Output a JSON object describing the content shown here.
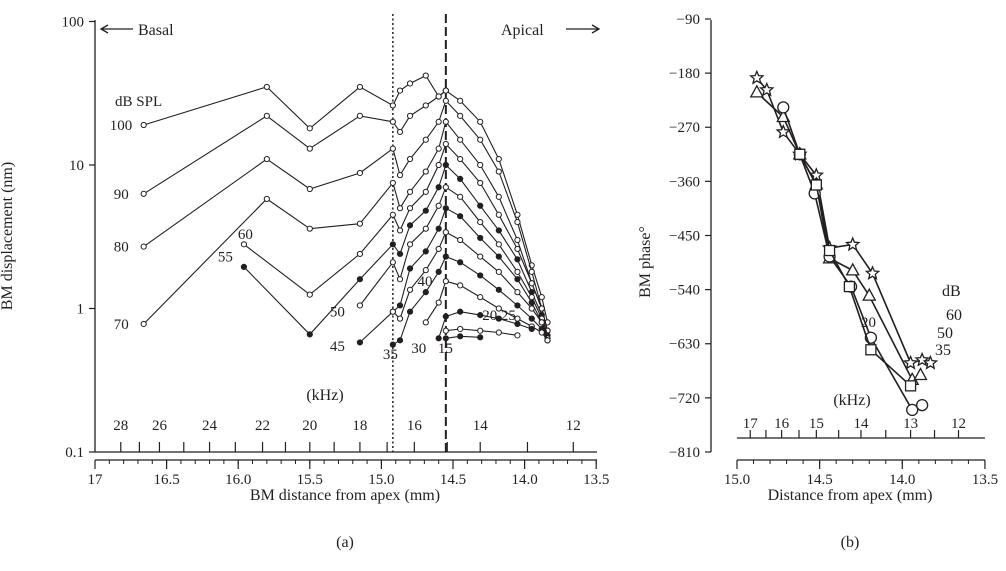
{
  "chart_data": [
    {
      "panel": "(a)",
      "type": "line",
      "ylabel": "BM displacement (nm)",
      "xlabel": "BM distance from apex (mm)",
      "yscale": "log",
      "ylim": [
        0.1,
        100
      ],
      "yticks": [
        0.1,
        1,
        10,
        100
      ],
      "ytick_labels": [
        "0.1",
        "1",
        "10",
        "100"
      ],
      "xlim": [
        17,
        13.5
      ],
      "xticks": [
        17,
        16.5,
        16,
        15.5,
        15,
        14.5,
        14,
        13.5
      ],
      "xtick_labels": [
        "17",
        "16.5",
        "16.0",
        "15.5",
        "15.0",
        "14.5",
        "14.0",
        "13.5"
      ],
      "freq_axis": {
        "label": "(kHz)",
        "labels": [
          "28",
          "26",
          "24",
          "22",
          "20",
          "18",
          "16",
          "14",
          "12"
        ],
        "label_positions_mm": [
          16.82,
          16.55,
          16.2,
          15.83,
          15.5,
          15.15,
          14.77,
          14.31,
          13.66
        ],
        "minor_ticks_mm": [
          16.82,
          16.69,
          16.55,
          16.38,
          16.2,
          16.02,
          15.83,
          15.67,
          15.5,
          15.33,
          15.15,
          14.96,
          14.77,
          14.54,
          14.31,
          13.98,
          13.66
        ]
      },
      "annotations": {
        "basal": "Basal",
        "apical": "Apical",
        "spl_header": "dB SPL",
        "dotted_line_mm": 14.92,
        "dashed_line_mm": 14.55
      },
      "level_labels": [
        {
          "text": "100",
          "x": 16.66,
          "y": 19
        },
        {
          "text": "90",
          "x": 16.66,
          "y": 6.3
        },
        {
          "text": "80",
          "x": 16.66,
          "y": 2.7
        },
        {
          "text": "70",
          "x": 16.66,
          "y": 0.78
        },
        {
          "text": "60",
          "x": 15.96,
          "y": 3.3
        },
        {
          "text": "55",
          "x": 15.96,
          "y": 2.3
        },
        {
          "text": "50",
          "x": 15.15,
          "y": 0.95
        },
        {
          "text": "45",
          "x": 15.15,
          "y": 0.55
        },
        {
          "text": "40",
          "x": 14.72,
          "y": 1.55
        },
        {
          "text": "35",
          "x": 14.92,
          "y": 0.48
        },
        {
          "text": "30",
          "x": 14.75,
          "y": 0.53
        },
        {
          "text": "15",
          "x": 14.55,
          "y": 0.53
        },
        {
          "text": "20",
          "x": 14.31,
          "y": 0.9
        },
        {
          "text": "25",
          "x": 14.18,
          "y": 0.9
        }
      ],
      "series": [
        {
          "name": "100",
          "marker": "open",
          "x": [
            16.66,
            15.8,
            15.5,
            15.15,
            14.92,
            14.87,
            14.8,
            14.69,
            14.6,
            14.55
          ],
          "y": [
            19,
            35,
            18,
            35,
            26,
            33,
            37,
            42,
            30,
            33
          ]
        },
        {
          "name": "90",
          "marker": "open",
          "x": [
            16.66,
            15.8,
            15.5,
            15.15,
            14.92,
            14.87,
            14.8,
            14.69,
            14.6,
            14.55,
            14.45,
            14.31,
            14.18,
            14.05,
            13.95,
            13.88,
            13.84
          ],
          "y": [
            6.3,
            22,
            13,
            22,
            20,
            17,
            22,
            26,
            30,
            33,
            28,
            20,
            11,
            4.5,
            2.0,
            1.2,
            0.8
          ]
        },
        {
          "name": "80",
          "marker": "open",
          "x": [
            16.66,
            15.8,
            15.5,
            15.15,
            14.92,
            14.87,
            14.8,
            14.69,
            14.6,
            14.55,
            14.45,
            14.31,
            14.18,
            14.05,
            13.95,
            13.88,
            13.84
          ],
          "y": [
            2.7,
            11,
            6.8,
            8.8,
            13,
            8.5,
            11,
            15,
            20,
            28,
            22,
            15,
            9.0,
            4.0,
            1.8,
            1.0,
            0.7
          ]
        },
        {
          "name": "70",
          "marker": "open",
          "x": [
            16.66,
            15.8,
            15.5,
            15.15,
            14.92,
            14.87,
            14.8,
            14.69,
            14.6,
            14.55,
            14.45,
            14.31,
            14.18,
            14.05,
            13.95,
            13.88,
            13.84
          ],
          "y": [
            0.78,
            5.8,
            3.6,
            3.9,
            7.5,
            5.0,
            6.5,
            9.0,
            13,
            20,
            15,
            10,
            6.0,
            3.0,
            1.5,
            1.0,
            0.7
          ]
        },
        {
          "name": "60",
          "marker": "open",
          "x": [
            15.96,
            15.5,
            15.15,
            14.92,
            14.87,
            14.8,
            14.69,
            14.6,
            14.55,
            14.45,
            14.31,
            14.18,
            14.05,
            13.95,
            13.88,
            13.84
          ],
          "y": [
            2.8,
            1.25,
            2.4,
            4.5,
            3.5,
            5.0,
            6.5,
            10,
            14,
            11,
            7.5,
            4.5,
            2.6,
            1.5,
            1.0,
            0.7
          ]
        },
        {
          "name": "55",
          "marker": "filled",
          "x": [
            15.96,
            15.5,
            15.15,
            14.92,
            14.87,
            14.8,
            14.69,
            14.6,
            14.55,
            14.45,
            14.31,
            14.18,
            14.05,
            13.95,
            13.88,
            13.84
          ],
          "y": [
            1.95,
            0.66,
            1.6,
            2.8,
            2.4,
            3.8,
            4.8,
            7.0,
            10,
            8.0,
            5.2,
            3.5,
            2.2,
            1.3,
            0.9,
            0.65
          ]
        },
        {
          "name": "50",
          "marker": "open",
          "x": [
            15.15,
            14.92,
            14.87,
            14.8,
            14.69,
            14.6,
            14.55,
            14.45,
            14.31,
            14.18,
            14.05,
            13.95,
            13.88,
            13.84
          ],
          "y": [
            1.05,
            2.1,
            1.6,
            2.8,
            3.6,
            5.2,
            7.0,
            6.0,
            4.0,
            2.8,
            1.8,
            1.2,
            0.85,
            0.62
          ]
        },
        {
          "name": "45",
          "marker": "filled",
          "x": [
            15.15,
            14.92,
            14.87,
            14.8,
            14.69,
            14.6,
            14.55,
            14.45,
            14.31,
            14.18,
            14.05,
            13.95,
            13.88,
            13.84
          ],
          "y": [
            0.58,
            0.95,
            1.05,
            1.9,
            2.5,
            3.6,
            5.0,
            4.4,
            3.1,
            2.3,
            1.6,
            1.1,
            0.8,
            0.6
          ]
        },
        {
          "name": "40",
          "marker": "open",
          "x": [
            14.92,
            14.87,
            14.8,
            14.69,
            14.6,
            14.55,
            14.45,
            14.31,
            14.18,
            14.05,
            13.95,
            13.88,
            13.84
          ],
          "y": [
            0.95,
            0.85,
            1.35,
            1.85,
            2.6,
            3.4,
            3.0,
            2.3,
            1.8,
            1.3,
            1.0,
            0.8,
            0.6
          ]
        },
        {
          "name": "35",
          "marker": "filled",
          "x": [
            14.92,
            14.87,
            14.8,
            14.69,
            14.6,
            14.55,
            14.45,
            14.31,
            14.18,
            14.05,
            13.95,
            13.88,
            13.84
          ],
          "y": [
            0.56,
            0.6,
            0.95,
            1.3,
            1.8,
            2.3,
            2.1,
            1.7,
            1.35,
            1.05,
            0.85,
            0.72,
            0.6
          ]
        },
        {
          "name": "30",
          "marker": "open",
          "x": [
            14.69,
            14.6,
            14.55,
            14.45,
            14.31,
            14.18,
            14.05,
            13.95,
            13.88,
            13.84
          ],
          "y": [
            0.8,
            1.1,
            1.55,
            1.45,
            1.2,
            1.0,
            0.85,
            0.75,
            0.68,
            0.6
          ]
        },
        {
          "name": "25",
          "marker": "filled",
          "x": [
            14.6,
            14.55,
            14.45,
            14.31,
            14.18,
            14.05,
            13.95
          ],
          "y": [
            0.62,
            0.88,
            0.95,
            0.9,
            0.85,
            0.78,
            0.72
          ]
        },
        {
          "name": "20",
          "marker": "open",
          "x": [
            14.55,
            14.45,
            14.31,
            14.18,
            14.05
          ],
          "y": [
            0.7,
            0.72,
            0.7,
            0.68,
            0.65
          ]
        },
        {
          "name": "15",
          "marker": "filled",
          "x": [
            14.55,
            14.45,
            14.31
          ],
          "y": [
            0.62,
            0.64,
            0.63
          ]
        }
      ]
    },
    {
      "panel": "(b)",
      "type": "line",
      "ylabel": "BM phase°",
      "xlabel": "Distance from apex (mm)",
      "ylim": [
        -810,
        -90
      ],
      "yticks": [
        -90,
        -180,
        -270,
        -360,
        -450,
        -540,
        -630,
        -720,
        -810
      ],
      "ytick_labels": [
        "−90",
        "−180",
        "−270",
        "−360",
        "−450",
        "−540",
        "−630",
        "−720",
        "−810"
      ],
      "xlim": [
        15.0,
        13.5
      ],
      "xticks": [
        15.0,
        14.5,
        14.0,
        13.5
      ],
      "xtick_labels": [
        "15.0",
        "14.5",
        "14.0",
        "13.5"
      ],
      "freq_axis": {
        "label": "(kHz)",
        "labels": [
          "17",
          "16",
          "15",
          "14",
          "13",
          "12"
        ],
        "label_positions_mm": [
          14.92,
          14.73,
          14.52,
          14.25,
          13.95,
          13.66
        ],
        "minor_ticks_mm": [
          14.92,
          14.825,
          14.73,
          14.625,
          14.52,
          14.385,
          14.25,
          14.1,
          13.95,
          13.805,
          13.66
        ]
      },
      "annotations": {
        "db_header": "dB",
        "level_labels": [
          "60",
          "50",
          "35",
          "20"
        ]
      },
      "series": [
        {
          "name": "60",
          "marker": "star",
          "x": [
            14.88,
            14.82,
            14.72,
            14.62,
            14.52,
            14.44,
            14.3,
            14.18,
            13.95,
            13.88,
            13.83
          ],
          "y": [
            -188,
            -208,
            -278,
            -315,
            -350,
            -471,
            -465,
            -513,
            -662,
            -657,
            -662
          ]
        },
        {
          "name": "50",
          "marker": "triangle",
          "x": [
            14.88,
            14.72,
            14.62,
            14.52,
            14.44,
            14.3,
            14.2,
            13.94,
            13.89
          ],
          "y": [
            -212,
            -253,
            -315,
            -365,
            -488,
            -508,
            -550,
            -690,
            -682
          ]
        },
        {
          "name": "35",
          "marker": "circle",
          "x": [
            14.72,
            14.62,
            14.53,
            14.44,
            14.31,
            14.19,
            13.94,
            13.88
          ],
          "y": [
            -237,
            -315,
            -380,
            -485,
            -535,
            -620,
            -740,
            -732
          ]
        },
        {
          "name": "20",
          "marker": "square",
          "x": [
            14.62,
            14.52,
            14.44,
            14.32,
            14.19,
            13.95
          ],
          "y": [
            -315,
            -366,
            -475,
            -535,
            -640,
            -700
          ]
        }
      ]
    }
  ],
  "captions": {
    "a": "(a)",
    "b": "(b)"
  }
}
